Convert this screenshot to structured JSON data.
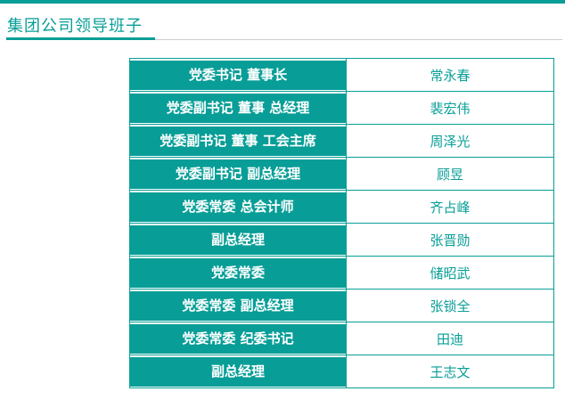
{
  "header": {
    "title": "集团公司领导班子"
  },
  "theme": {
    "accent_teal": "#089e97",
    "divider_gray": "#cccccc",
    "position_text_color": "#ffffff",
    "name_text_color": "#089e97",
    "background": "#ffffff"
  },
  "leadership_table": {
    "rows": [
      {
        "position": "党委书记 董事长",
        "name": "常永春"
      },
      {
        "position": "党委副书记 董事 总经理",
        "name": "裴宏伟"
      },
      {
        "position": "党委副书记 董事 工会主席",
        "name": "周泽光"
      },
      {
        "position": "党委副书记 副总经理",
        "name": "顾昱"
      },
      {
        "position": "党委常委 总会计师",
        "name": "齐占峰"
      },
      {
        "position": "副总经理",
        "name": "张晋勋"
      },
      {
        "position": "党委常委",
        "name": "储昭武"
      },
      {
        "position": "党委常委 副总经理",
        "name": "张锁全"
      },
      {
        "position": "党委常委 纪委书记",
        "name": "田迪"
      },
      {
        "position": "副总经理",
        "name": "王志文"
      }
    ]
  }
}
